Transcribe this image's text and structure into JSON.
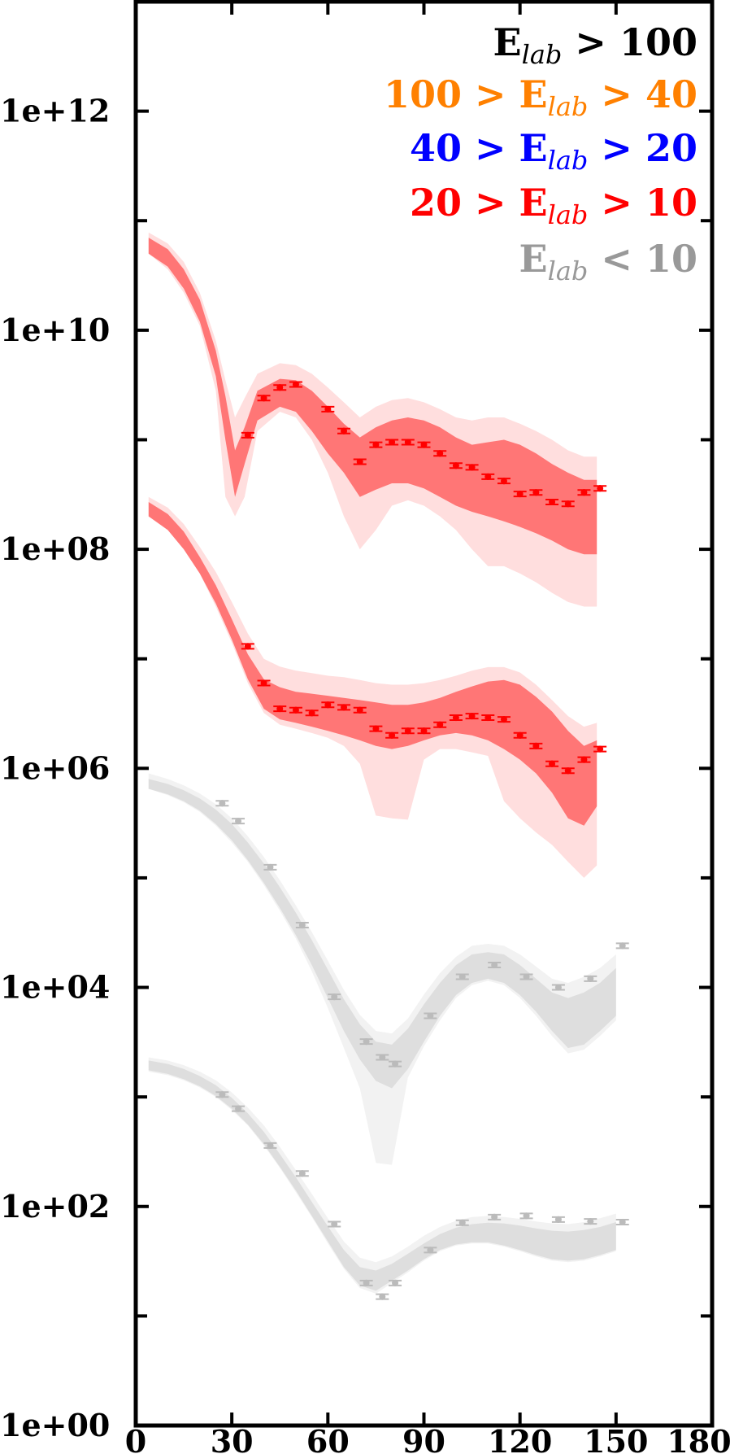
{
  "chart_data": {
    "type": "scatter",
    "title": "",
    "xlabel": "",
    "ylabel": "",
    "x_scale": "linear",
    "y_scale": "log",
    "xlim": [
      0,
      180
    ],
    "ylim": [
      1,
      10000000000000.0
    ],
    "x_ticks": [
      0,
      30,
      60,
      90,
      120,
      150,
      180
    ],
    "x_tick_labels": [
      "0",
      "30",
      "60",
      "90",
      "120",
      "150",
      "180"
    ],
    "y_ticks": [
      1,
      100,
      10000,
      1000000,
      100000000,
      10000000000,
      1000000000000
    ],
    "y_tick_labels": [
      "1e+00",
      "1e+02",
      "1e+04",
      "1e+06",
      "1e+08",
      "1e+10",
      "1e+12"
    ],
    "grid": false,
    "legend_placement": "top-right",
    "legend": [
      {
        "text_parts": [
          [
            "E",
            "main"
          ],
          [
            "lab",
            "sub"
          ],
          [
            " > 100",
            "main"
          ]
        ],
        "color": "#000000"
      },
      {
        "text_parts": [
          [
            "100 > E",
            "main"
          ],
          [
            "lab",
            "sub"
          ],
          [
            " > 40",
            "main"
          ]
        ],
        "color": "#ff8000"
      },
      {
        "text_parts": [
          [
            "40 > E",
            "main"
          ],
          [
            "lab",
            "sub"
          ],
          [
            " > 20",
            "main"
          ]
        ],
        "color": "#0000ff"
      },
      {
        "text_parts": [
          [
            "20 > E",
            "main"
          ],
          [
            "lab",
            "sub"
          ],
          [
            " > 10",
            "main"
          ]
        ],
        "color": "#ff0000"
      },
      {
        "text_parts": [
          [
            "E",
            "main"
          ],
          [
            "lab",
            "sub"
          ],
          [
            " < 10",
            "main"
          ]
        ],
        "color": "#999999"
      }
    ],
    "series": [
      {
        "color": "#ff0000",
        "band_color": "#ff7070",
        "outer_color": "#ffdede",
        "points": [
          [
            35,
            1100000000.0
          ],
          [
            40,
            2400000000.0
          ],
          [
            45,
            3000000000.0
          ],
          [
            50,
            3200000000.0
          ],
          [
            60,
            1900000000.0
          ],
          [
            65,
            1200000000.0
          ],
          [
            70,
            630000000.0
          ],
          [
            75,
            900000000.0
          ],
          [
            80,
            950000000.0
          ],
          [
            85,
            950000000.0
          ],
          [
            90,
            900000000.0
          ],
          [
            95,
            750000000.0
          ],
          [
            100,
            580000000.0
          ],
          [
            105,
            560000000.0
          ],
          [
            110,
            460000000.0
          ],
          [
            115,
            420000000.0
          ],
          [
            120,
            320000000.0
          ],
          [
            125,
            330000000.0
          ],
          [
            130,
            270000000.0
          ],
          [
            135,
            260000000.0
          ],
          [
            140,
            330000000.0
          ],
          [
            145,
            360000000.0
          ]
        ],
        "band_x": [
          4,
          10,
          15,
          20,
          25,
          28,
          31,
          34,
          38,
          45,
          50,
          55,
          60,
          65,
          70,
          75,
          80,
          85,
          90,
          95,
          100,
          105,
          110,
          115,
          120,
          125,
          130,
          135,
          140,
          144
        ],
        "band_low": [
          50000000000.0,
          38000000000.0,
          24000000000.0,
          12000000000.0,
          3800000000.0,
          1000000000.0,
          300000000.0,
          600000000.0,
          1500000000.0,
          2000000000.0,
          1800000000.0,
          1200000000.0,
          750000000.0,
          500000000.0,
          300000000.0,
          350000000.0,
          400000000.0,
          400000000.0,
          360000000.0,
          300000000.0,
          250000000.0,
          220000000.0,
          200000000.0,
          180000000.0,
          160000000.0,
          140000000.0,
          120000000.0,
          100000000.0,
          90000000.0,
          90000000.0
        ],
        "band_high": [
          70000000000.0,
          55000000000.0,
          36000000000.0,
          19000000000.0,
          6500000000.0,
          2500000000.0,
          800000000.0,
          1300000000.0,
          2800000000.0,
          3600000000.0,
          3500000000.0,
          2800000000.0,
          2000000000.0,
          1400000000.0,
          1050000000.0,
          1300000000.0,
          1500000000.0,
          1600000000.0,
          1500000000.0,
          1300000000.0,
          1050000000.0,
          900000000.0,
          950000000.0,
          1000000000.0,
          900000000.0,
          750000000.0,
          600000000.0,
          500000000.0,
          430000000.0,
          430000000.0
        ],
        "outer_low": [
          50000000000.0,
          36000000000.0,
          22000000000.0,
          11000000000.0,
          2800000000.0,
          300000000.0,
          200000000.0,
          300000000.0,
          1200000000.0,
          1800000000.0,
          1600000000.0,
          1000000000.0,
          500000000.0,
          200000000.0,
          100000000.0,
          150000000.0,
          250000000.0,
          280000000.0,
          250000000.0,
          200000000.0,
          150000000.0,
          100000000.0,
          70000000.0,
          70000000.0,
          60000000.0,
          50000000.0,
          40000000.0,
          33000000.0,
          30000000.0,
          30000000.0
        ],
        "outer_high": [
          78000000000.0,
          62000000000.0,
          42000000000.0,
          22000000000.0,
          8000000000.0,
          3500000000.0,
          1600000000.0,
          2400000000.0,
          4000000000.0,
          5000000000.0,
          4800000000.0,
          4000000000.0,
          3000000000.0,
          2200000000.0,
          1600000000.0,
          2000000000.0,
          2300000000.0,
          2400000000.0,
          2200000000.0,
          1900000000.0,
          1600000000.0,
          1500000000.0,
          1600000000.0,
          1600000000.0,
          1400000000.0,
          1200000000.0,
          1000000000.0,
          800000000.0,
          700000000.0,
          700000000.0
        ]
      },
      {
        "color": "#ff0000",
        "band_color": "#ff7070",
        "outer_color": "#ffdede",
        "points": [
          [
            35,
            13000000.0
          ],
          [
            40,
            6000000.0
          ],
          [
            45,
            3500000.0
          ],
          [
            50,
            3400000.0
          ],
          [
            55,
            3200000.0
          ],
          [
            60,
            3800000.0
          ],
          [
            65,
            3600000.0
          ],
          [
            70,
            3400000.0
          ],
          [
            75,
            2300000.0
          ],
          [
            80,
            2000000.0
          ],
          [
            85,
            2200000.0
          ],
          [
            90,
            2200000.0
          ],
          [
            95,
            2500000.0
          ],
          [
            100,
            2900000.0
          ],
          [
            105,
            3000000.0
          ],
          [
            110,
            2900000.0
          ],
          [
            115,
            2800000.0
          ],
          [
            120,
            2000000.0
          ],
          [
            125,
            1600000.0
          ],
          [
            130,
            1100000.0
          ],
          [
            135,
            950000.0
          ],
          [
            140,
            1200000.0
          ],
          [
            145,
            1500000.0
          ]
        ],
        "band_x": [
          4,
          10,
          15,
          20,
          25,
          30,
          35,
          40,
          45,
          50,
          55,
          60,
          65,
          70,
          75,
          80,
          85,
          90,
          95,
          100,
          105,
          110,
          115,
          120,
          125,
          130,
          135,
          140,
          144
        ],
        "band_low": [
          200000000.0,
          150000000.0,
          100000000.0,
          60000000.0,
          32000000.0,
          15000000.0,
          6500000.0,
          3500000.0,
          2800000.0,
          2600000.0,
          2400000.0,
          2200000.0,
          2000000.0,
          1800000.0,
          1600000.0,
          1500000.0,
          1600000.0,
          1800000.0,
          2000000.0,
          2100000.0,
          2000000.0,
          1800000.0,
          1500000.0,
          1200000.0,
          900000.0,
          600000.0,
          350000.0,
          300000.0,
          450000.0
        ],
        "band_high": [
          270000000.0,
          210000000.0,
          145000000.0,
          85000000.0,
          47000000.0,
          23000000.0,
          11000000.0,
          6500000.0,
          5500000.0,
          5000000.0,
          4800000.0,
          4600000.0,
          4400000.0,
          4200000.0,
          4000000.0,
          3800000.0,
          3800000.0,
          4000000.0,
          4400000.0,
          5000000.0,
          5600000.0,
          6200000.0,
          6400000.0,
          5800000.0,
          4500000.0,
          3300000.0,
          2200000.0,
          1600000.0,
          1800000.0
        ],
        "outer_low": [
          200000000.0,
          150000000.0,
          100000000.0,
          60000000.0,
          30000000.0,
          14000000.0,
          6000000.0,
          3200000.0,
          2500000.0,
          2300000.0,
          2100000.0,
          1900000.0,
          1600000.0,
          1100000.0,
          370000.0,
          350000.0,
          340000.0,
          1200000.0,
          1500000.0,
          1500000.0,
          1400000.0,
          1300000.0,
          500000.0,
          350000.0,
          260000.0,
          200000.0,
          140000.0,
          100000.0,
          130000.0
        ],
        "outer_high": [
          300000000.0,
          240000000.0,
          170000000.0,
          105000000.0,
          62000000.0,
          33000000.0,
          17000000.0,
          10000000.0,
          8500000.0,
          7800000.0,
          7400000.0,
          7000000.0,
          6800000.0,
          6400000.0,
          6000000.0,
          5800000.0,
          5800000.0,
          6000000.0,
          6400000.0,
          7000000.0,
          7800000.0,
          8400000.0,
          8400000.0,
          7500000.0,
          5800000.0,
          4200000.0,
          3000000.0,
          2400000.0,
          2600000.0
        ]
      },
      {
        "color": "#bbbbbb",
        "band_color": "#dcdcdc",
        "outer_color": "#f2f2f2",
        "points": [
          [
            27,
            480000.0
          ],
          [
            32,
            330000.0
          ],
          [
            42,
            125000.0
          ],
          [
            52,
            37000.0
          ],
          [
            62,
            8200.0
          ],
          [
            72,
            3200.0
          ],
          [
            77,
            2300.0
          ],
          [
            81,
            2000.0
          ],
          [
            92,
            5500.0
          ],
          [
            102,
            12500.0
          ],
          [
            112,
            16000.0
          ],
          [
            122,
            12500.0
          ],
          [
            132,
            10000.0
          ],
          [
            142,
            12000.0
          ],
          [
            152,
            24000.0
          ]
        ],
        "band_x": [
          4,
          10,
          15,
          20,
          25,
          30,
          35,
          40,
          45,
          50,
          55,
          60,
          65,
          70,
          75,
          80,
          85,
          90,
          95,
          100,
          105,
          110,
          115,
          120,
          125,
          130,
          135,
          140,
          145,
          150
        ],
        "band_low": [
          650000.0,
          580000.0,
          500000.0,
          410000.0,
          310000.0,
          220000.0,
          145000.0,
          90000.0,
          53000.0,
          30000.0,
          16000.0,
          8000.0,
          4000.0,
          2200.0,
          1400.0,
          1200.0,
          1800.0,
          3200.0,
          5500.0,
          8500.0,
          11000.0,
          12000.0,
          11000.0,
          8500.0,
          6000.0,
          4000.0,
          2800.0,
          3000.0,
          4000.0,
          5500.0
        ],
        "band_high": [
          800000.0,
          720000.0,
          630000.0,
          530000.0,
          420000.0,
          310000.0,
          210000.0,
          135000.0,
          82000.0,
          48000.0,
          27000.0,
          14500.0,
          7800.0,
          4600.0,
          3200.0,
          3000.0,
          4200.0,
          7000.0,
          11000.0,
          16000.0,
          20000.0,
          21000.0,
          20000.0,
          16000.0,
          12000.0,
          9000.0,
          8000.0,
          9000.0,
          11000.0,
          15000.0
        ],
        "outer_low": [
          650000.0,
          570000.0,
          490000.0,
          400000.0,
          300000.0,
          210000.0,
          140000.0,
          86000.0,
          50000.0,
          28000.0,
          14000.0,
          6500.0,
          2800.0,
          1200.0,
          250.0,
          240.0,
          1500.0,
          2900.0,
          5000.0,
          8000.0,
          10500.0,
          11500.0,
          10500.0,
          8000.0,
          5500.0,
          3600.0,
          2500.0,
          2700.0,
          3600.0,
          5000.0
        ],
        "outer_high": [
          900000.0,
          800000.0,
          700000.0,
          590000.0,
          470000.0,
          350000.0,
          240000.0,
          155000.0,
          95000.0,
          56000.0,
          32000.0,
          17500.0,
          9500.0,
          5600.0,
          4000.0,
          3800.0,
          5200.0,
          8600.0,
          13500.0,
          19000.0,
          24000.0,
          25000.0,
          24000.0,
          20000.0,
          15500.0,
          12000.0,
          11000.0,
          12500.0,
          15000.0,
          20000.0
        ]
      },
      {
        "color": "#bbbbbb",
        "band_color": "#dcdcdc",
        "outer_color": "#f2f2f2",
        "points": [
          [
            27,
            1050.0
          ],
          [
            32,
            780.0
          ],
          [
            42,
            360.0
          ],
          [
            52,
            200.0
          ],
          [
            62,
            69
          ],
          [
            72,
            20
          ],
          [
            77,
            15
          ],
          [
            81,
            20
          ],
          [
            92,
            40
          ],
          [
            102,
            71
          ],
          [
            112,
            80
          ],
          [
            122,
            82
          ],
          [
            132,
            76
          ],
          [
            142,
            73
          ],
          [
            152,
            72
          ]
        ],
        "band_x": [
          4,
          10,
          15,
          20,
          25,
          30,
          35,
          40,
          45,
          50,
          55,
          60,
          65,
          70,
          75,
          80,
          85,
          90,
          95,
          100,
          105,
          110,
          115,
          120,
          125,
          130,
          135,
          140,
          145,
          150
        ],
        "band_low": [
          1750.0,
          1620.0,
          1450.0,
          1250.0,
          1020.0,
          780.0,
          560.0,
          370.0,
          230.0,
          140.0,
          82,
          48,
          28,
          19,
          17,
          21,
          26,
          33,
          40,
          45,
          47,
          47,
          44,
          40,
          36,
          33,
          32,
          33,
          36,
          40
        ],
        "band_high": [
          2150.0,
          2000.0,
          1800.0,
          1550.0,
          1280.0,
          980.0,
          710.0,
          480.0,
          300.0,
          185.0,
          110.0,
          66,
          40,
          28,
          26,
          30,
          37,
          46,
          56,
          64,
          69,
          71,
          70,
          67,
          63,
          60,
          59,
          61,
          65,
          72
        ],
        "outer_low": [
          1700.0,
          1580.0,
          1420.0,
          1220.0,
          1000.0,
          760.0,
          550.0,
          360.0,
          225.0,
          135.0,
          80,
          46,
          27,
          18,
          16,
          20,
          25,
          32,
          39,
          44,
          46,
          46,
          43,
          39,
          35,
          32,
          31,
          32,
          35,
          39
        ],
        "outer_high": [
          2300.0,
          2150.0,
          1950.0,
          1700.0,
          1420.0,
          1100.0,
          800.0,
          550.0,
          350.0,
          215.0,
          130.0,
          78,
          48,
          34,
          31,
          35,
          43,
          54,
          65,
          74,
          80,
          82,
          80,
          77,
          73,
          70,
          69,
          72,
          78,
          86
        ]
      }
    ]
  }
}
